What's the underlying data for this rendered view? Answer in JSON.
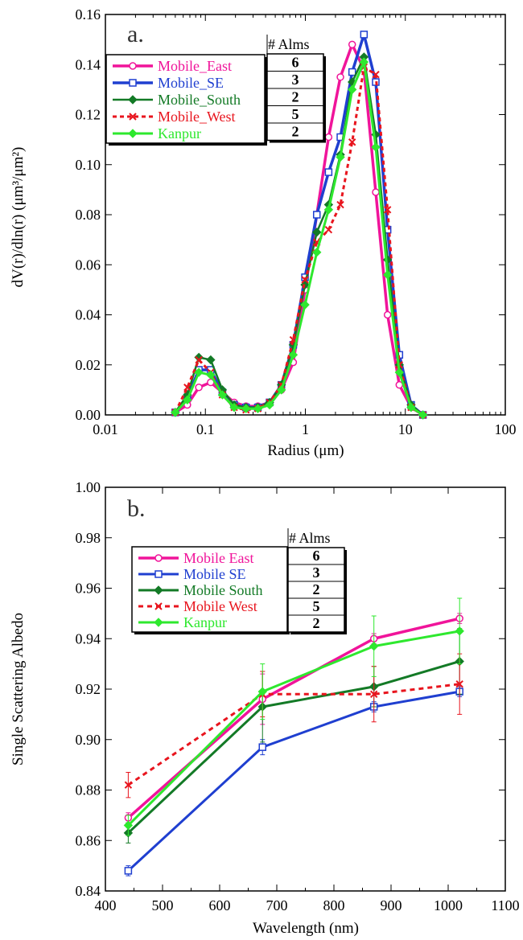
{
  "chart_data": [
    {
      "type": "line",
      "panel_label": "a.",
      "xlabel": "Radius (μm)",
      "ylabel": "dV(r)/dln(r) (μm³/μm²)",
      "xscale": "log",
      "xlim": [
        0.01,
        100
      ],
      "ylim": [
        0,
        0.16
      ],
      "xticks": [
        0.01,
        0.1,
        1,
        10,
        100
      ],
      "xtick_labels": [
        "0.01",
        "0.1",
        "1",
        "10",
        "100"
      ],
      "yticks": [
        0,
        0.02,
        0.04,
        0.06,
        0.08,
        0.1,
        0.12,
        0.14,
        0.16
      ],
      "ytick_labels": [
        "0.00",
        "0.02",
        "0.04",
        "0.06",
        "0.08",
        "0.10",
        "0.12",
        "0.14",
        "0.16"
      ],
      "grid": false,
      "legend_position": "top-left",
      "alms_header": "# Alms",
      "x": [
        0.05,
        0.066,
        0.086,
        0.113,
        0.148,
        0.194,
        0.255,
        0.335,
        0.439,
        0.576,
        0.756,
        0.992,
        1.302,
        1.708,
        2.241,
        2.94,
        3.857,
        5.061,
        6.641,
        8.713,
        11.43,
        15.0
      ],
      "series": [
        {
          "name": "Mobile_East",
          "alms": "6",
          "color": "#f0149a",
          "marker": "circle",
          "dash": "",
          "width": 3.5,
          "values": [
            0.001,
            0.004,
            0.011,
            0.013,
            0.009,
            0.005,
            0.0035,
            0.0035,
            0.005,
            0.01,
            0.021,
            0.05,
            0.08,
            0.111,
            0.135,
            0.148,
            0.138,
            0.089,
            0.04,
            0.012,
            0.003,
            0.0
          ]
        },
        {
          "name": "Mobile_SE",
          "alms": "3",
          "color": "#1f3fd0",
          "marker": "square",
          "dash": "",
          "width": 3.5,
          "values": [
            0.001,
            0.007,
            0.018,
            0.018,
            0.009,
            0.004,
            0.003,
            0.003,
            0.005,
            0.012,
            0.028,
            0.055,
            0.08,
            0.097,
            0.111,
            0.137,
            0.152,
            0.133,
            0.074,
            0.024,
            0.004,
            0.0
          ]
        },
        {
          "name": "Mobile_South",
          "alms": "2",
          "color": "#137a26",
          "marker": "diamond",
          "dash": "",
          "width": 2.5,
          "values": [
            0.001,
            0.008,
            0.023,
            0.022,
            0.01,
            0.004,
            0.003,
            0.003,
            0.005,
            0.012,
            0.028,
            0.052,
            0.073,
            0.084,
            0.104,
            0.133,
            0.143,
            0.112,
            0.062,
            0.02,
            0.004,
            0.0
          ]
        },
        {
          "name": "Mobile_West",
          "alms": "5",
          "color": "#e8151e",
          "marker": "cross",
          "dash": "5,4",
          "width": 3,
          "values": [
            0.001,
            0.011,
            0.022,
            0.017,
            0.008,
            0.003,
            0.002,
            0.0025,
            0.005,
            0.012,
            0.03,
            0.054,
            0.069,
            0.074,
            0.084,
            0.109,
            0.139,
            0.136,
            0.082,
            0.02,
            0.003,
            0.0
          ]
        },
        {
          "name": "Kanpur",
          "alms": "2",
          "color": "#2ee82e",
          "marker": "diamond",
          "dash": "",
          "width": 3,
          "values": [
            0.001,
            0.006,
            0.017,
            0.016,
            0.008,
            0.003,
            0.0025,
            0.0025,
            0.004,
            0.01,
            0.024,
            0.044,
            0.065,
            0.082,
            0.103,
            0.13,
            0.141,
            0.107,
            0.056,
            0.017,
            0.003,
            0.0
          ]
        }
      ]
    },
    {
      "type": "line",
      "panel_label": "b.",
      "xlabel": "Wavelength (nm)",
      "ylabel": "Single Scattering Albedo",
      "xlim": [
        400,
        1100
      ],
      "ylim": [
        0.84,
        1.0
      ],
      "xticks": [
        400,
        500,
        600,
        700,
        800,
        900,
        1000,
        1100
      ],
      "xtick_labels": [
        "400",
        "500",
        "600",
        "700",
        "800",
        "900",
        "1000",
        "1100"
      ],
      "yticks": [
        0.84,
        0.86,
        0.88,
        0.9,
        0.92,
        0.94,
        0.96,
        0.98,
        1.0
      ],
      "ytick_labels": [
        "0.84",
        "0.86",
        "0.88",
        "0.90",
        "0.92",
        "0.94",
        "0.96",
        "0.98",
        "1.00"
      ],
      "grid": false,
      "legend_position": "top-left",
      "alms_header": "# Alms",
      "x": [
        440,
        675,
        870,
        1020
      ],
      "series": [
        {
          "name": "Mobile East",
          "alms": "6",
          "color": "#f0149a",
          "marker": "circle",
          "dash": "",
          "width": 3.5,
          "values": [
            0.869,
            0.916,
            0.94,
            0.948
          ],
          "err": [
            0.002,
            0.01,
            0.002,
            0.002
          ]
        },
        {
          "name": "Mobile SE",
          "alms": "3",
          "color": "#1f3fd0",
          "marker": "square",
          "dash": "",
          "width": 3,
          "values": [
            0.848,
            0.897,
            0.913,
            0.919
          ],
          "err": [
            0.002,
            0.003,
            0.002,
            0.002
          ]
        },
        {
          "name": "Mobile South",
          "alms": "2",
          "color": "#137a26",
          "marker": "diamond",
          "dash": "",
          "width": 3,
          "values": [
            0.863,
            0.913,
            0.921,
            0.931
          ],
          "err": [
            0.004,
            0.014,
            0.008,
            0.013
          ]
        },
        {
          "name": "Mobile West",
          "alms": "5",
          "color": "#e8151e",
          "marker": "cross",
          "dash": "6,5",
          "width": 3,
          "values": [
            0.882,
            0.918,
            0.918,
            0.922
          ],
          "err": [
            0.005,
            0.009,
            0.011,
            0.012
          ]
        },
        {
          "name": "Kanpur",
          "alms": "2",
          "color": "#2ee82e",
          "marker": "diamond",
          "dash": "",
          "width": 3,
          "values": [
            0.866,
            0.919,
            0.937,
            0.943
          ],
          "err": [
            0.004,
            0.011,
            0.012,
            0.013
          ]
        }
      ]
    }
  ]
}
